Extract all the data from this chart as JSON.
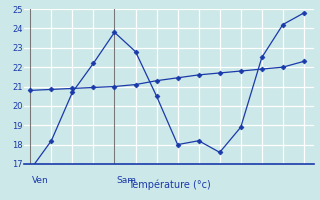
{
  "background_color": "#cde8e8",
  "grid_color": "#ffffff",
  "line_color": "#1a3aaa",
  "marker_color": "#1a3aaa",
  "xlabel": "Température (°c)",
  "ylim": [
    17,
    25
  ],
  "yticks": [
    17,
    18,
    19,
    20,
    21,
    22,
    23,
    24,
    25
  ],
  "line1_x": [
    0,
    1,
    2,
    3,
    4,
    5,
    6,
    7,
    8,
    9,
    10,
    11,
    12,
    13
  ],
  "line1_y": [
    16.7,
    18.2,
    20.7,
    22.2,
    23.8,
    22.8,
    20.5,
    18.0,
    18.2,
    17.6,
    18.9,
    22.5,
    24.2,
    24.8
  ],
  "line2_x": [
    0,
    1,
    2,
    3,
    4,
    5,
    6,
    7,
    8,
    9,
    10,
    11,
    12,
    13
  ],
  "line2_y": [
    20.8,
    20.85,
    20.9,
    20.95,
    21.0,
    21.1,
    21.3,
    21.45,
    21.6,
    21.7,
    21.8,
    21.9,
    22.0,
    22.3
  ],
  "day_lines": [
    0,
    4
  ],
  "day_labels": [
    "Ven",
    "Sam"
  ],
  "xtick_count": 14,
  "xlabel_fontsize": 7,
  "ytick_fontsize": 6,
  "day_label_fontsize": 6.5
}
